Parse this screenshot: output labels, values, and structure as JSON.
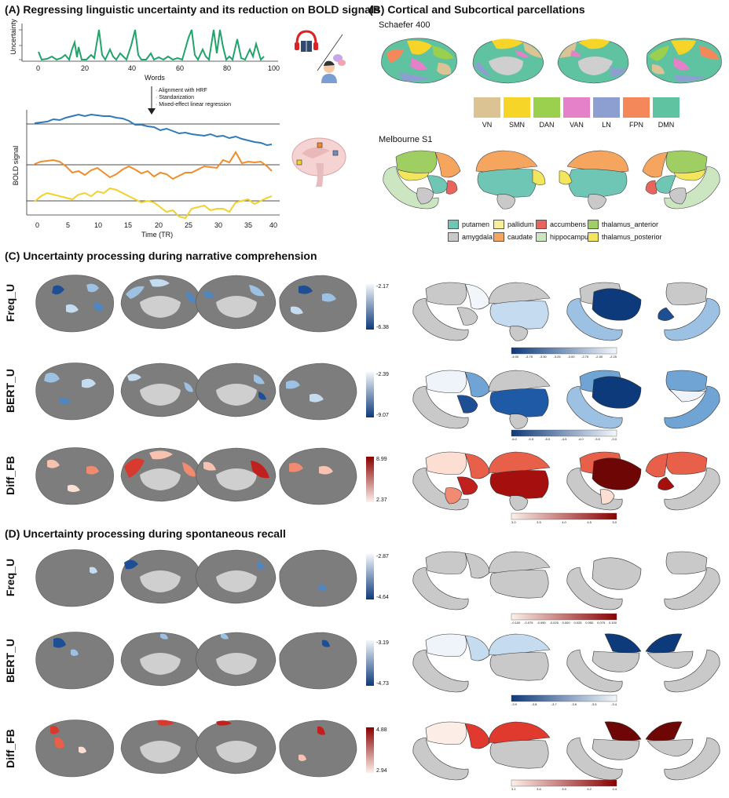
{
  "panelA": {
    "title": "(A) Regressing linguistic uncertainty and its reduction on BOLD signals",
    "top_ylabel": "Uncertainty",
    "top_xlabel": "Words",
    "top_xticks": [
      "0",
      "20",
      "40",
      "60",
      "80",
      "100"
    ],
    "steps": [
      "· Alignment with HRF",
      "· Standarization",
      "· Mixed-effect linear regression"
    ],
    "bottom_ylabel": "BOLD signal",
    "bottom_xlabel": "Time (TR)",
    "bottom_xticks": [
      "0",
      "5",
      "10",
      "15",
      "20",
      "25",
      "30",
      "35",
      "40"
    ]
  },
  "panelB": {
    "title": "(B) Cortical and Subcortical parcellations",
    "schaefer_label": "Schaefer 400",
    "networks": [
      {
        "name": "VN",
        "color": "#dcc393"
      },
      {
        "name": "SMN",
        "color": "#f7d528"
      },
      {
        "name": "DAN",
        "color": "#9ad04d"
      },
      {
        "name": "VAN",
        "color": "#e481c9"
      },
      {
        "name": "LN",
        "color": "#8c9fd0"
      },
      {
        "name": "FPN",
        "color": "#f4885a"
      },
      {
        "name": "DMN",
        "color": "#5fc2a0"
      }
    ],
    "melbourne_label": "Melbourne S1",
    "subcortical": [
      {
        "name": "putamen",
        "color": "#6fc6b5"
      },
      {
        "name": "pallidum",
        "color": "#f7ee9a"
      },
      {
        "name": "accumbens",
        "color": "#e8655d"
      },
      {
        "name": "thalamus_anterior",
        "color": "#9fcf62"
      },
      {
        "name": "amygdala",
        "color": "#c9c9c9"
      },
      {
        "name": "caudate",
        "color": "#f6a55f"
      },
      {
        "name": "hippocampus",
        "color": "#cde6c2"
      },
      {
        "name": "thalamus_posterior",
        "color": "#f4e65c"
      }
    ]
  },
  "panelC": {
    "title": "(C) Uncertainty processing during narrative comprehension",
    "rows": [
      {
        "label": "Freq_U",
        "cb_max": "-2.17",
        "cb_min": "-6.38",
        "sub_ticks": [
          "-4.00",
          "-3.75",
          "-3.50",
          "-3.25",
          "-3.00",
          "-2.75",
          "-2.50",
          "-2.25"
        ]
      },
      {
        "label": "BERT_U",
        "cb_max": "-2.39",
        "cb_min": "-9.07",
        "sub_ticks": [
          "-6.0",
          "-5.5",
          "-5.0",
          "-4.5",
          "-4.0",
          "-3.5",
          "-3.0"
        ]
      },
      {
        "label": "Diff_FB",
        "cb_max": "8.99",
        "cb_min": "2.37",
        "sub_ticks": [
          "3.0",
          "3.5",
          "4.0",
          "4.5",
          "5.0"
        ]
      }
    ]
  },
  "panelD": {
    "title": "(D) Uncertainty processing during spontaneous recall",
    "rows": [
      {
        "label": "Freq_U",
        "cb_max": "-2.87",
        "cb_min": "-4.64",
        "sub_ticks": [
          "-0.100",
          "-0.075",
          "-0.050",
          "-0.025",
          "0.000",
          "0.025",
          "0.050",
          "0.075",
          "0.100"
        ]
      },
      {
        "label": "BERT_U",
        "cb_max": "-3.19",
        "cb_min": "-4.73",
        "sub_ticks": [
          "-3.9",
          "-3.8",
          "-3.7",
          "-3.6",
          "-3.5",
          "-3.4"
        ]
      },
      {
        "label": "Diff_FB",
        "cb_max": "4.88",
        "cb_min": "2.94",
        "sub_ticks": [
          "3.1",
          "3.6",
          "3.9",
          "4.2",
          "4.4"
        ]
      }
    ]
  }
}
